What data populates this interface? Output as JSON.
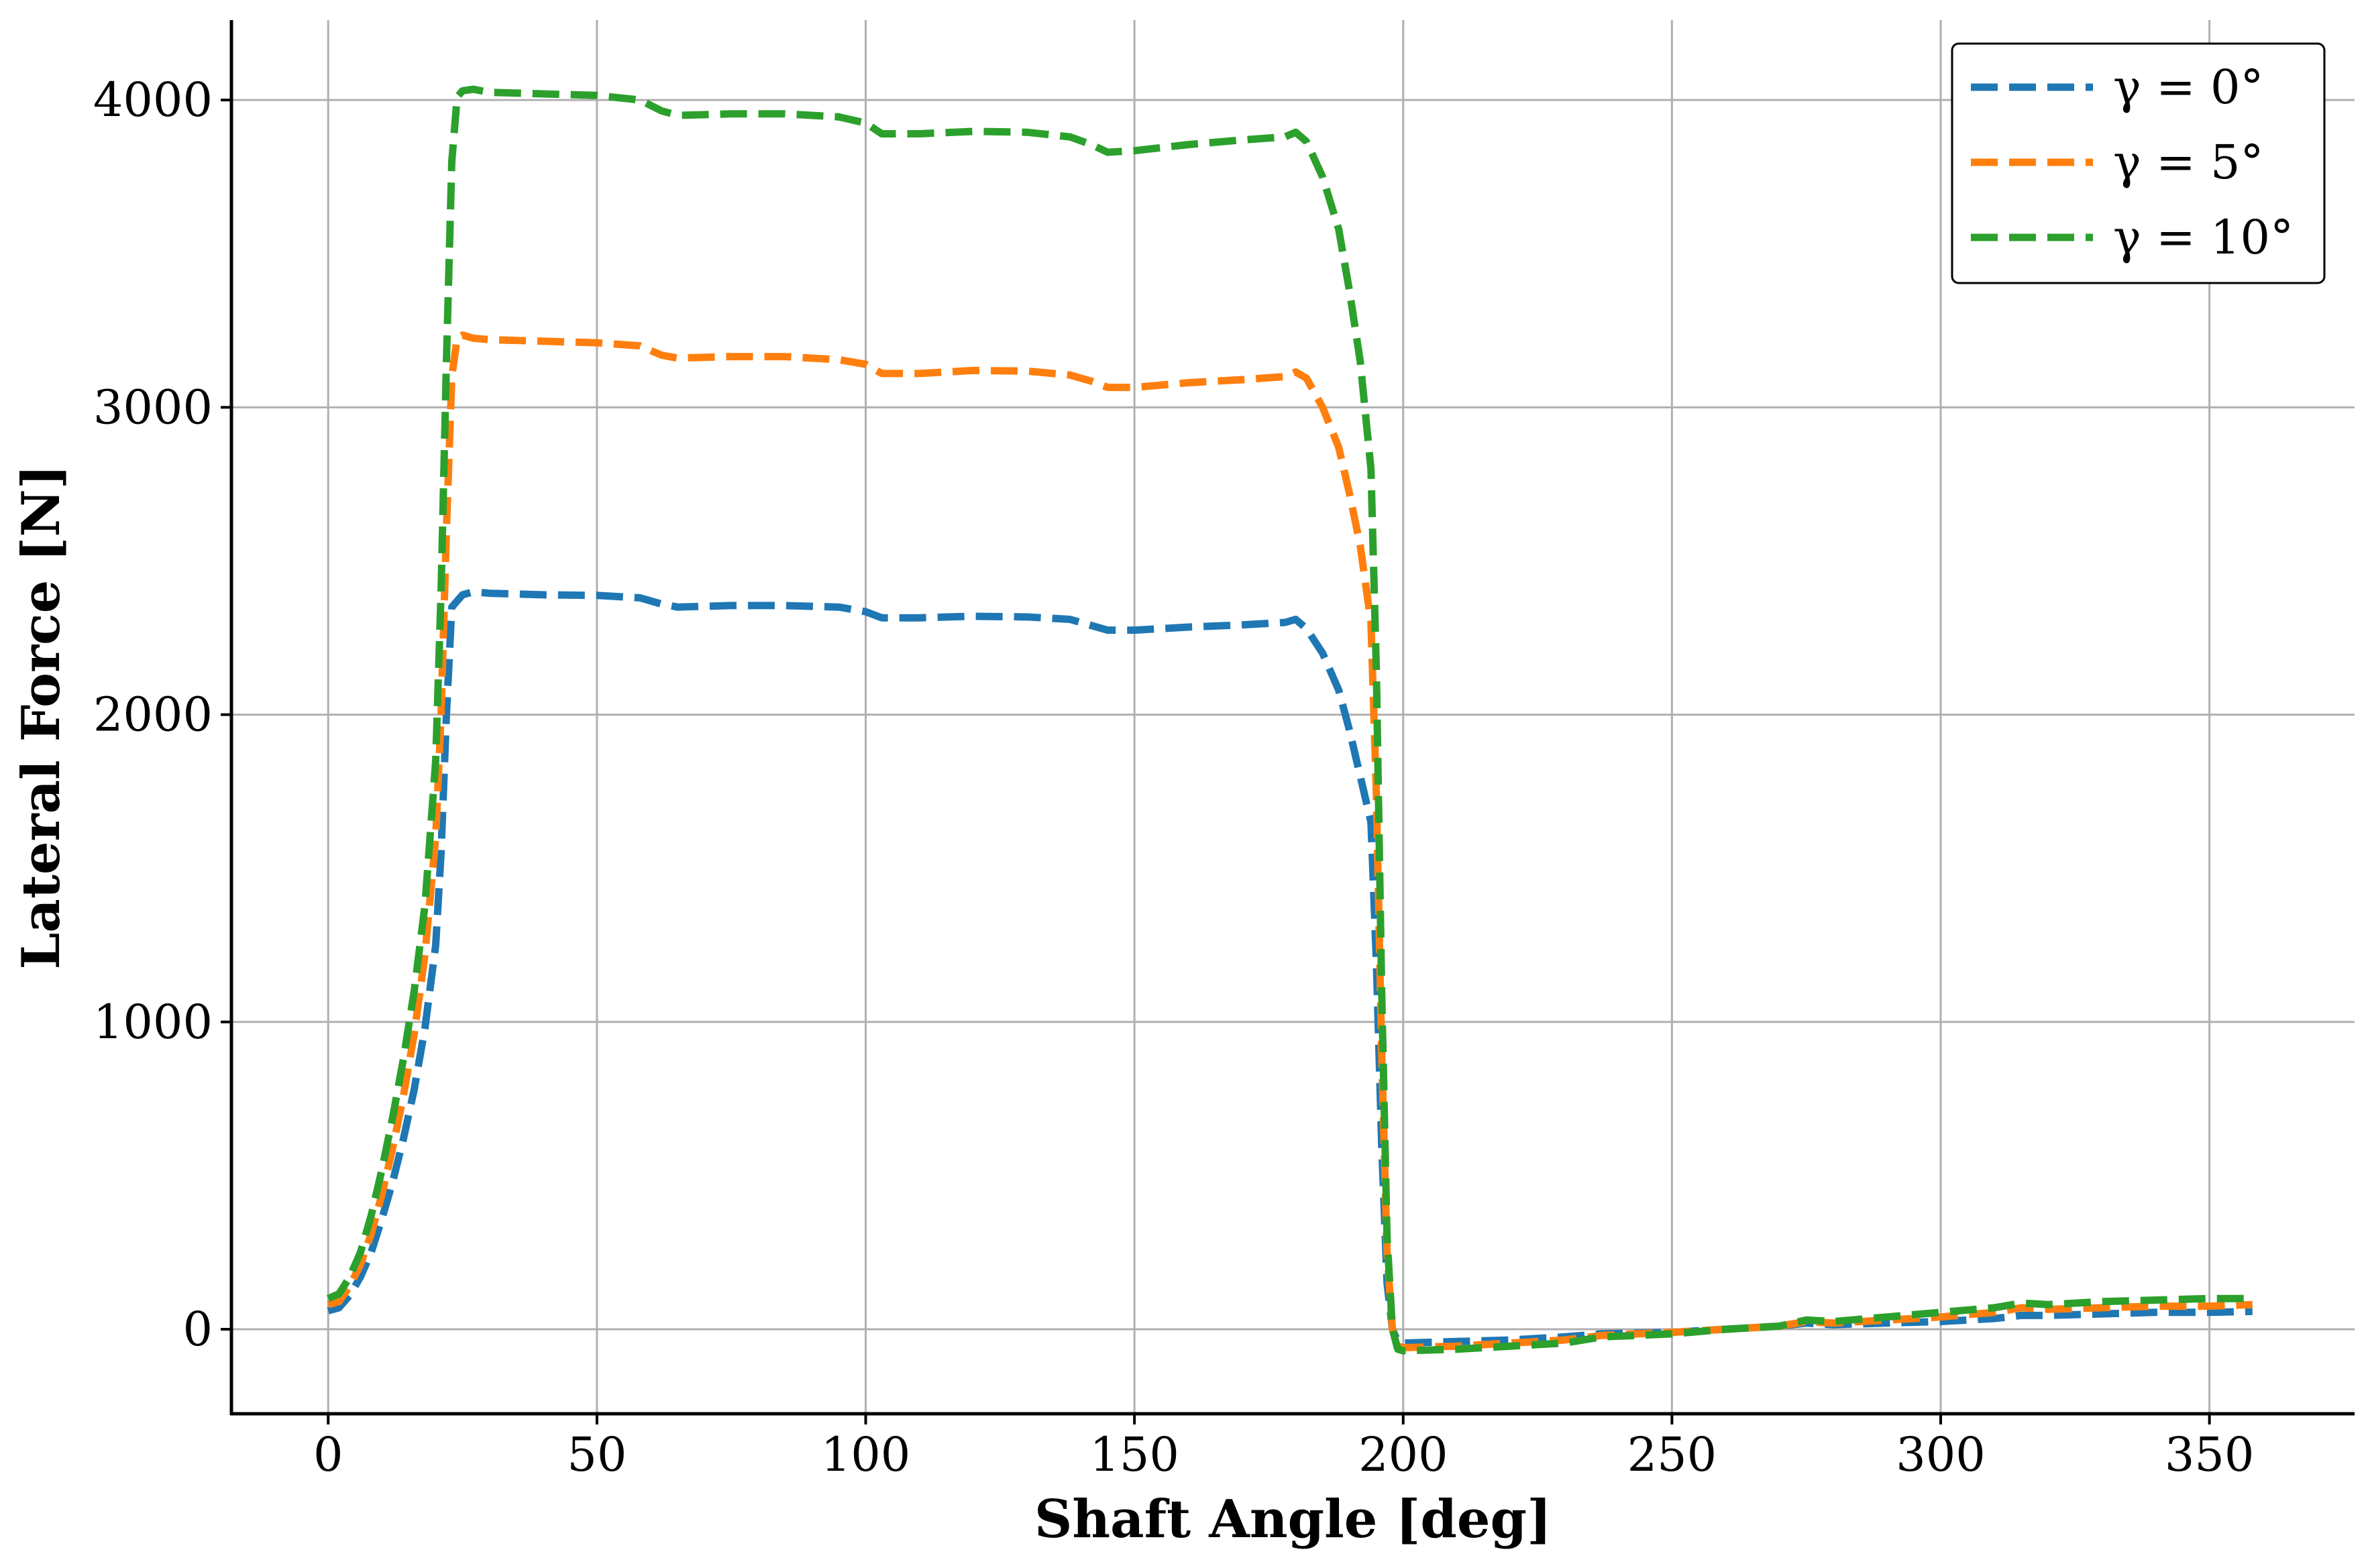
{
  "chart_data": {
    "type": "line",
    "title": "",
    "xlabel": "Shaft Angle [deg]",
    "ylabel": "Lateral Force [N]",
    "xlim": [
      -18,
      377
    ],
    "ylim": [
      -275,
      4260
    ],
    "xticks": [
      0,
      50,
      100,
      150,
      200,
      250,
      300,
      350
    ],
    "yticks": [
      0,
      1000,
      2000,
      3000,
      4000
    ],
    "grid": true,
    "legend_position": "top-right",
    "line_style": "dashed",
    "series": [
      {
        "name": "γ = 0°",
        "color": "#1f77b4",
        "points": [
          [
            0,
            60
          ],
          [
            2,
            70
          ],
          [
            4,
            110
          ],
          [
            6,
            170
          ],
          [
            8,
            250
          ],
          [
            10,
            360
          ],
          [
            12,
            480
          ],
          [
            14,
            620
          ],
          [
            16,
            780
          ],
          [
            18,
            980
          ],
          [
            20,
            1250
          ],
          [
            21,
            1550
          ],
          [
            22,
            2000
          ],
          [
            23,
            2350
          ],
          [
            25,
            2390
          ],
          [
            27,
            2400
          ],
          [
            30,
            2395
          ],
          [
            40,
            2390
          ],
          [
            50,
            2388
          ],
          [
            58,
            2380
          ],
          [
            62,
            2360
          ],
          [
            65,
            2350
          ],
          [
            75,
            2355
          ],
          [
            85,
            2355
          ],
          [
            95,
            2350
          ],
          [
            100,
            2335
          ],
          [
            103,
            2315
          ],
          [
            110,
            2315
          ],
          [
            120,
            2320
          ],
          [
            130,
            2318
          ],
          [
            138,
            2310
          ],
          [
            142,
            2290
          ],
          [
            145,
            2275
          ],
          [
            150,
            2275
          ],
          [
            160,
            2285
          ],
          [
            170,
            2292
          ],
          [
            178,
            2300
          ],
          [
            180,
            2310
          ],
          [
            182,
            2280
          ],
          [
            185,
            2200
          ],
          [
            188,
            2080
          ],
          [
            190,
            1950
          ],
          [
            192,
            1800
          ],
          [
            194,
            1650
          ],
          [
            195,
            1200
          ],
          [
            196,
            600
          ],
          [
            197,
            150
          ],
          [
            198,
            0
          ],
          [
            199,
            -40
          ],
          [
            200,
            -45
          ],
          [
            210,
            -40
          ],
          [
            220,
            -35
          ],
          [
            230,
            -25
          ],
          [
            237,
            -15
          ],
          [
            250,
            -10
          ],
          [
            260,
            0
          ],
          [
            270,
            10
          ],
          [
            275,
            20
          ],
          [
            280,
            15
          ],
          [
            290,
            20
          ],
          [
            300,
            25
          ],
          [
            310,
            35
          ],
          [
            315,
            45
          ],
          [
            320,
            45
          ],
          [
            330,
            50
          ],
          [
            340,
            55
          ],
          [
            350,
            55
          ],
          [
            358,
            58
          ]
        ]
      },
      {
        "name": "γ = 5°",
        "color": "#ff7f0e",
        "points": [
          [
            0,
            80
          ],
          [
            2,
            90
          ],
          [
            4,
            140
          ],
          [
            6,
            210
          ],
          [
            8,
            310
          ],
          [
            10,
            440
          ],
          [
            12,
            590
          ],
          [
            14,
            760
          ],
          [
            16,
            960
          ],
          [
            18,
            1220
          ],
          [
            20,
            1600
          ],
          [
            21,
            2000
          ],
          [
            22,
            2600
          ],
          [
            23,
            3100
          ],
          [
            24,
            3225
          ],
          [
            25,
            3235
          ],
          [
            27,
            3225
          ],
          [
            30,
            3220
          ],
          [
            40,
            3215
          ],
          [
            50,
            3210
          ],
          [
            58,
            3200
          ],
          [
            62,
            3170
          ],
          [
            65,
            3160
          ],
          [
            75,
            3165
          ],
          [
            85,
            3165
          ],
          [
            95,
            3155
          ],
          [
            100,
            3140
          ],
          [
            103,
            3110
          ],
          [
            110,
            3110
          ],
          [
            120,
            3120
          ],
          [
            130,
            3118
          ],
          [
            138,
            3105
          ],
          [
            142,
            3085
          ],
          [
            145,
            3065
          ],
          [
            150,
            3065
          ],
          [
            160,
            3080
          ],
          [
            170,
            3090
          ],
          [
            178,
            3100
          ],
          [
            180,
            3115
          ],
          [
            182,
            3095
          ],
          [
            185,
            3000
          ],
          [
            188,
            2870
          ],
          [
            190,
            2720
          ],
          [
            192,
            2550
          ],
          [
            194,
            2300
          ],
          [
            195,
            1750
          ],
          [
            196,
            900
          ],
          [
            197,
            250
          ],
          [
            198,
            0
          ],
          [
            199,
            -55
          ],
          [
            200,
            -60
          ],
          [
            210,
            -55
          ],
          [
            220,
            -45
          ],
          [
            230,
            -35
          ],
          [
            237,
            -20
          ],
          [
            250,
            -10
          ],
          [
            260,
            0
          ],
          [
            270,
            10
          ],
          [
            275,
            25
          ],
          [
            280,
            20
          ],
          [
            290,
            30
          ],
          [
            300,
            40
          ],
          [
            310,
            55
          ],
          [
            315,
            70
          ],
          [
            320,
            65
          ],
          [
            330,
            70
          ],
          [
            340,
            75
          ],
          [
            350,
            75
          ],
          [
            358,
            80
          ]
        ]
      },
      {
        "name": "γ = 10°",
        "color": "#2ca02c",
        "points": [
          [
            0,
            100
          ],
          [
            2,
            115
          ],
          [
            4,
            170
          ],
          [
            6,
            250
          ],
          [
            8,
            370
          ],
          [
            10,
            520
          ],
          [
            12,
            690
          ],
          [
            14,
            880
          ],
          [
            16,
            1100
          ],
          [
            18,
            1380
          ],
          [
            20,
            1850
          ],
          [
            21,
            2400
          ],
          [
            22,
            3150
          ],
          [
            23,
            3800
          ],
          [
            24,
            4010
          ],
          [
            25,
            4030
          ],
          [
            27,
            4035
          ],
          [
            30,
            4025
          ],
          [
            40,
            4020
          ],
          [
            50,
            4015
          ],
          [
            58,
            4000
          ],
          [
            62,
            3965
          ],
          [
            65,
            3950
          ],
          [
            75,
            3955
          ],
          [
            85,
            3955
          ],
          [
            95,
            3945
          ],
          [
            100,
            3925
          ],
          [
            103,
            3890
          ],
          [
            110,
            3890
          ],
          [
            120,
            3898
          ],
          [
            130,
            3895
          ],
          [
            138,
            3880
          ],
          [
            142,
            3855
          ],
          [
            145,
            3830
          ],
          [
            150,
            3835
          ],
          [
            160,
            3855
          ],
          [
            170,
            3870
          ],
          [
            178,
            3880
          ],
          [
            180,
            3895
          ],
          [
            182,
            3865
          ],
          [
            185,
            3750
          ],
          [
            188,
            3580
          ],
          [
            190,
            3380
          ],
          [
            192,
            3150
          ],
          [
            194,
            2800
          ],
          [
            195,
            2150
          ],
          [
            196,
            1100
          ],
          [
            197,
            300
          ],
          [
            198,
            0
          ],
          [
            199,
            -65
          ],
          [
            200,
            -70
          ],
          [
            210,
            -65
          ],
          [
            220,
            -55
          ],
          [
            230,
            -45
          ],
          [
            237,
            -25
          ],
          [
            250,
            -15
          ],
          [
            260,
            0
          ],
          [
            270,
            10
          ],
          [
            275,
            30
          ],
          [
            280,
            25
          ],
          [
            290,
            40
          ],
          [
            300,
            55
          ],
          [
            310,
            70
          ],
          [
            315,
            85
          ],
          [
            320,
            80
          ],
          [
            330,
            90
          ],
          [
            340,
            95
          ],
          [
            350,
            100
          ],
          [
            358,
            100
          ]
        ]
      }
    ]
  }
}
